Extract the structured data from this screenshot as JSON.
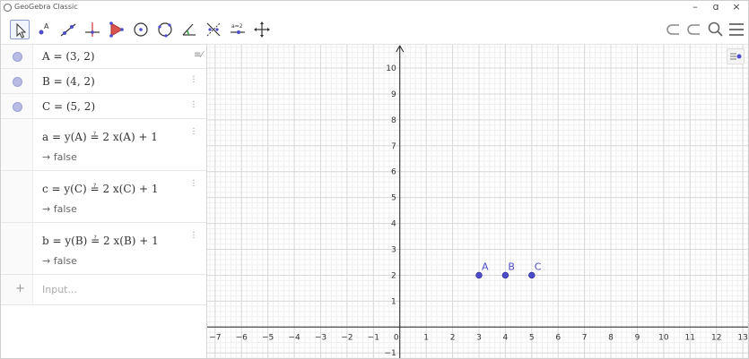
{
  "window": {
    "title": "GeoGebra Classic",
    "controls": {
      "minimize": "–",
      "maximize": "ɑ",
      "close": "×"
    }
  },
  "toolbar": {
    "tools": [
      {
        "name": "move-tool",
        "icon": "arrow-cursor-icon",
        "selected": true
      },
      {
        "name": "point-tool",
        "icon": "point-icon",
        "label": "A"
      },
      {
        "name": "line-tool",
        "icon": "line-icon"
      },
      {
        "name": "perpendicular-line-tool",
        "icon": "perpendicular-icon"
      },
      {
        "name": "polygon-tool",
        "icon": "polygon-icon"
      },
      {
        "name": "circle-tool",
        "icon": "circle-icon"
      },
      {
        "name": "circle-three-points-tool",
        "icon": "circle-three-points-icon"
      },
      {
        "name": "angle-tool",
        "icon": "angle-icon"
      },
      {
        "name": "reflect-tool",
        "icon": "reflect-icon"
      },
      {
        "name": "slider-tool",
        "icon": "slider-icon",
        "label": "a=2"
      },
      {
        "name": "move-graphics-tool",
        "icon": "move-graphics-icon"
      }
    ],
    "right": [
      {
        "name": "undo-button",
        "icon": "undo-icon"
      },
      {
        "name": "redo-button",
        "icon": "redo-icon"
      },
      {
        "name": "search-button",
        "icon": "search-icon"
      },
      {
        "name": "menu-button",
        "icon": "hamburger-menu-icon"
      }
    ]
  },
  "algebra": {
    "style_toggle": "≡⁄",
    "items": [
      {
        "id": "A",
        "expr": "A = (3, 2)",
        "type": "point"
      },
      {
        "id": "B",
        "expr": "B = (4, 2)",
        "type": "point"
      },
      {
        "id": "C",
        "expr": "C = (5, 2)",
        "type": "point"
      },
      {
        "id": "a",
        "lhs": "a = y(A)",
        "rel": "≟",
        "rhs": "2 x(A) + 1",
        "result": "→ false",
        "type": "boolean"
      },
      {
        "id": "c",
        "lhs": "c = y(C)",
        "rel": "≟",
        "rhs": "2 x(C) + 1",
        "result": "→ false",
        "type": "boolean"
      },
      {
        "id": "b",
        "lhs": "b = y(B)",
        "rel": "≟",
        "rhs": "2 x(B) + 1",
        "result": "→ false",
        "type": "boolean"
      }
    ],
    "input": {
      "plus": "+",
      "placeholder": "Input..."
    }
  },
  "graphics": {
    "x_ticks": [
      "−7",
      "−6",
      "−5",
      "−4",
      "−3",
      "−2",
      "−1",
      "0",
      "1",
      "2",
      "3",
      "4",
      "5",
      "6",
      "7",
      "8",
      "9",
      "10",
      "11",
      "12",
      "13"
    ],
    "y_ticks": [
      "10",
      "9",
      "8",
      "7",
      "6",
      "5",
      "4",
      "3",
      "2",
      "1",
      "−1"
    ],
    "x_range": [
      -7.3,
      13.2
    ],
    "y_range": [
      -1.2,
      10.9
    ],
    "grid": true,
    "points": [
      {
        "label": "A",
        "x": 3,
        "y": 2
      },
      {
        "label": "B",
        "x": 4,
        "y": 2
      },
      {
        "label": "C",
        "x": 5,
        "y": 2
      }
    ],
    "colors": {
      "point": "#4d4dcc",
      "axis": "#222222",
      "grid_major": "#d9d9d9",
      "grid_minor": "#efefef"
    }
  }
}
